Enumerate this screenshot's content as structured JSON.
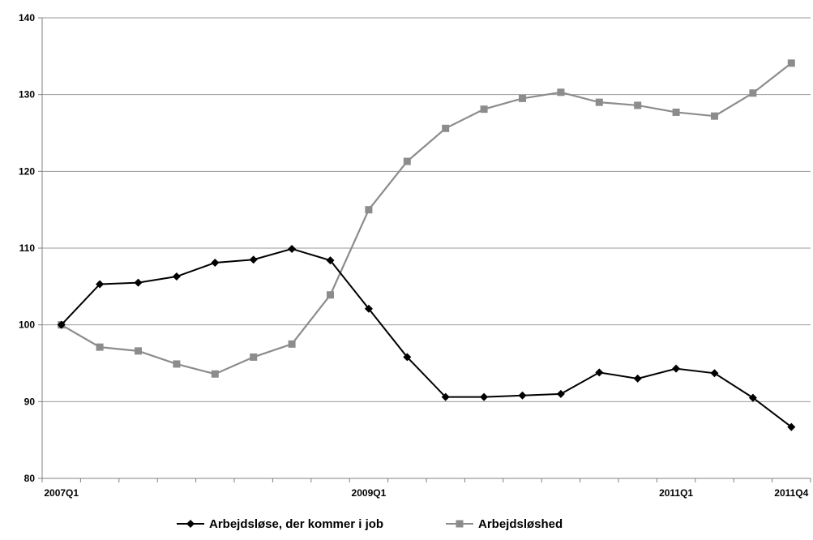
{
  "chart_data": {
    "type": "line",
    "title": "",
    "xlabel": "",
    "ylabel": "",
    "ylim": [
      80,
      140
    ],
    "y_ticks": [
      80,
      90,
      100,
      110,
      120,
      130,
      140
    ],
    "grid": "horizontal",
    "legend_position": "bottom",
    "x": [
      "2007Q1",
      "2007Q2",
      "2007Q3",
      "2007Q4",
      "2008Q1",
      "2008Q2",
      "2008Q3",
      "2008Q4",
      "2009Q1",
      "2009Q2",
      "2009Q3",
      "2009Q4",
      "2010Q1",
      "2010Q2",
      "2010Q3",
      "2010Q4",
      "2011Q1",
      "2011Q2",
      "2011Q3",
      "2011Q4"
    ],
    "x_tick_labels": [
      {
        "index": 0,
        "label": "2007Q1"
      },
      {
        "index": 8,
        "label": "2009Q1"
      },
      {
        "index": 16,
        "label": "2011Q1"
      },
      {
        "index": 19,
        "label": "2011Q4"
      }
    ],
    "series": [
      {
        "name": "Arbejdsløse, der kommer i job",
        "color": "#000000",
        "marker": "diamond",
        "values": [
          100.0,
          105.3,
          105.5,
          106.3,
          108.1,
          108.5,
          109.9,
          108.4,
          102.1,
          95.8,
          90.6,
          90.6,
          90.8,
          91.0,
          93.8,
          93.0,
          94.3,
          93.7,
          90.5,
          86.7
        ]
      },
      {
        "name": "Arbejdsløshed",
        "color": "#8c8c8c",
        "marker": "square",
        "values": [
          100.0,
          97.1,
          96.6,
          94.9,
          93.6,
          95.8,
          97.5,
          103.9,
          115.0,
          121.3,
          125.6,
          128.1,
          129.5,
          130.3,
          129.0,
          128.6,
          127.7,
          127.2,
          130.2,
          134.1
        ]
      }
    ]
  }
}
